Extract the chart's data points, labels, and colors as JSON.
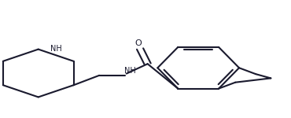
{
  "bg_color": "#ffffff",
  "line_color": "#1a1a2e",
  "line_width": 1.5,
  "figsize": [
    3.7,
    1.5
  ],
  "dpi": 100,
  "NH_label": "NH",
  "O_label": "O"
}
